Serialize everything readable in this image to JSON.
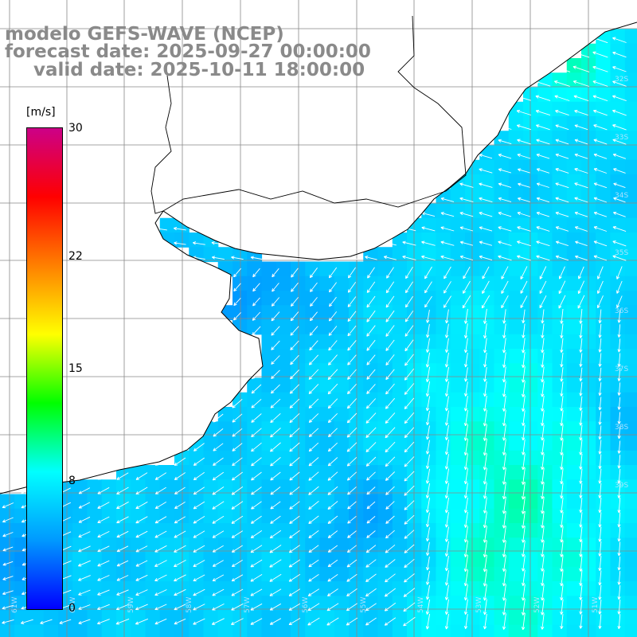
{
  "title": {
    "model_line": "modelo GEFS-WAVE (NCEP)",
    "forecast_line": "forecast date: 2025-09-27 00:00:00",
    "valid_line": "valid date: 2025-10-11 18:00:00"
  },
  "colorbar": {
    "unit": "[m/s]",
    "ticks": [
      "30",
      "22",
      "15",
      "8",
      "0"
    ],
    "tick_values": [
      30,
      22,
      15,
      8,
      0
    ],
    "min": 0,
    "max": 30,
    "colors": [
      "#0000ff",
      "#0099ff",
      "#00ffff",
      "#00ff00",
      "#ffff00",
      "#ff8000",
      "#ff0000",
      "#cc0088"
    ]
  },
  "map": {
    "region": "Rio de la Plata / Southwest Atlantic",
    "lat_labels": [
      "32S",
      "33S",
      "34S",
      "35S",
      "36S",
      "37S",
      "38S",
      "39S"
    ],
    "lon_labels": [
      "61W",
      "60W",
      "59W",
      "58W",
      "57W",
      "56W",
      "55W",
      "54W",
      "53W",
      "52W",
      "51W"
    ],
    "wind_direction": "predominantly from north-east toward south-west",
    "land_color": "#ffffff",
    "grid_color": "#888888",
    "coast_color": "#000000"
  }
}
